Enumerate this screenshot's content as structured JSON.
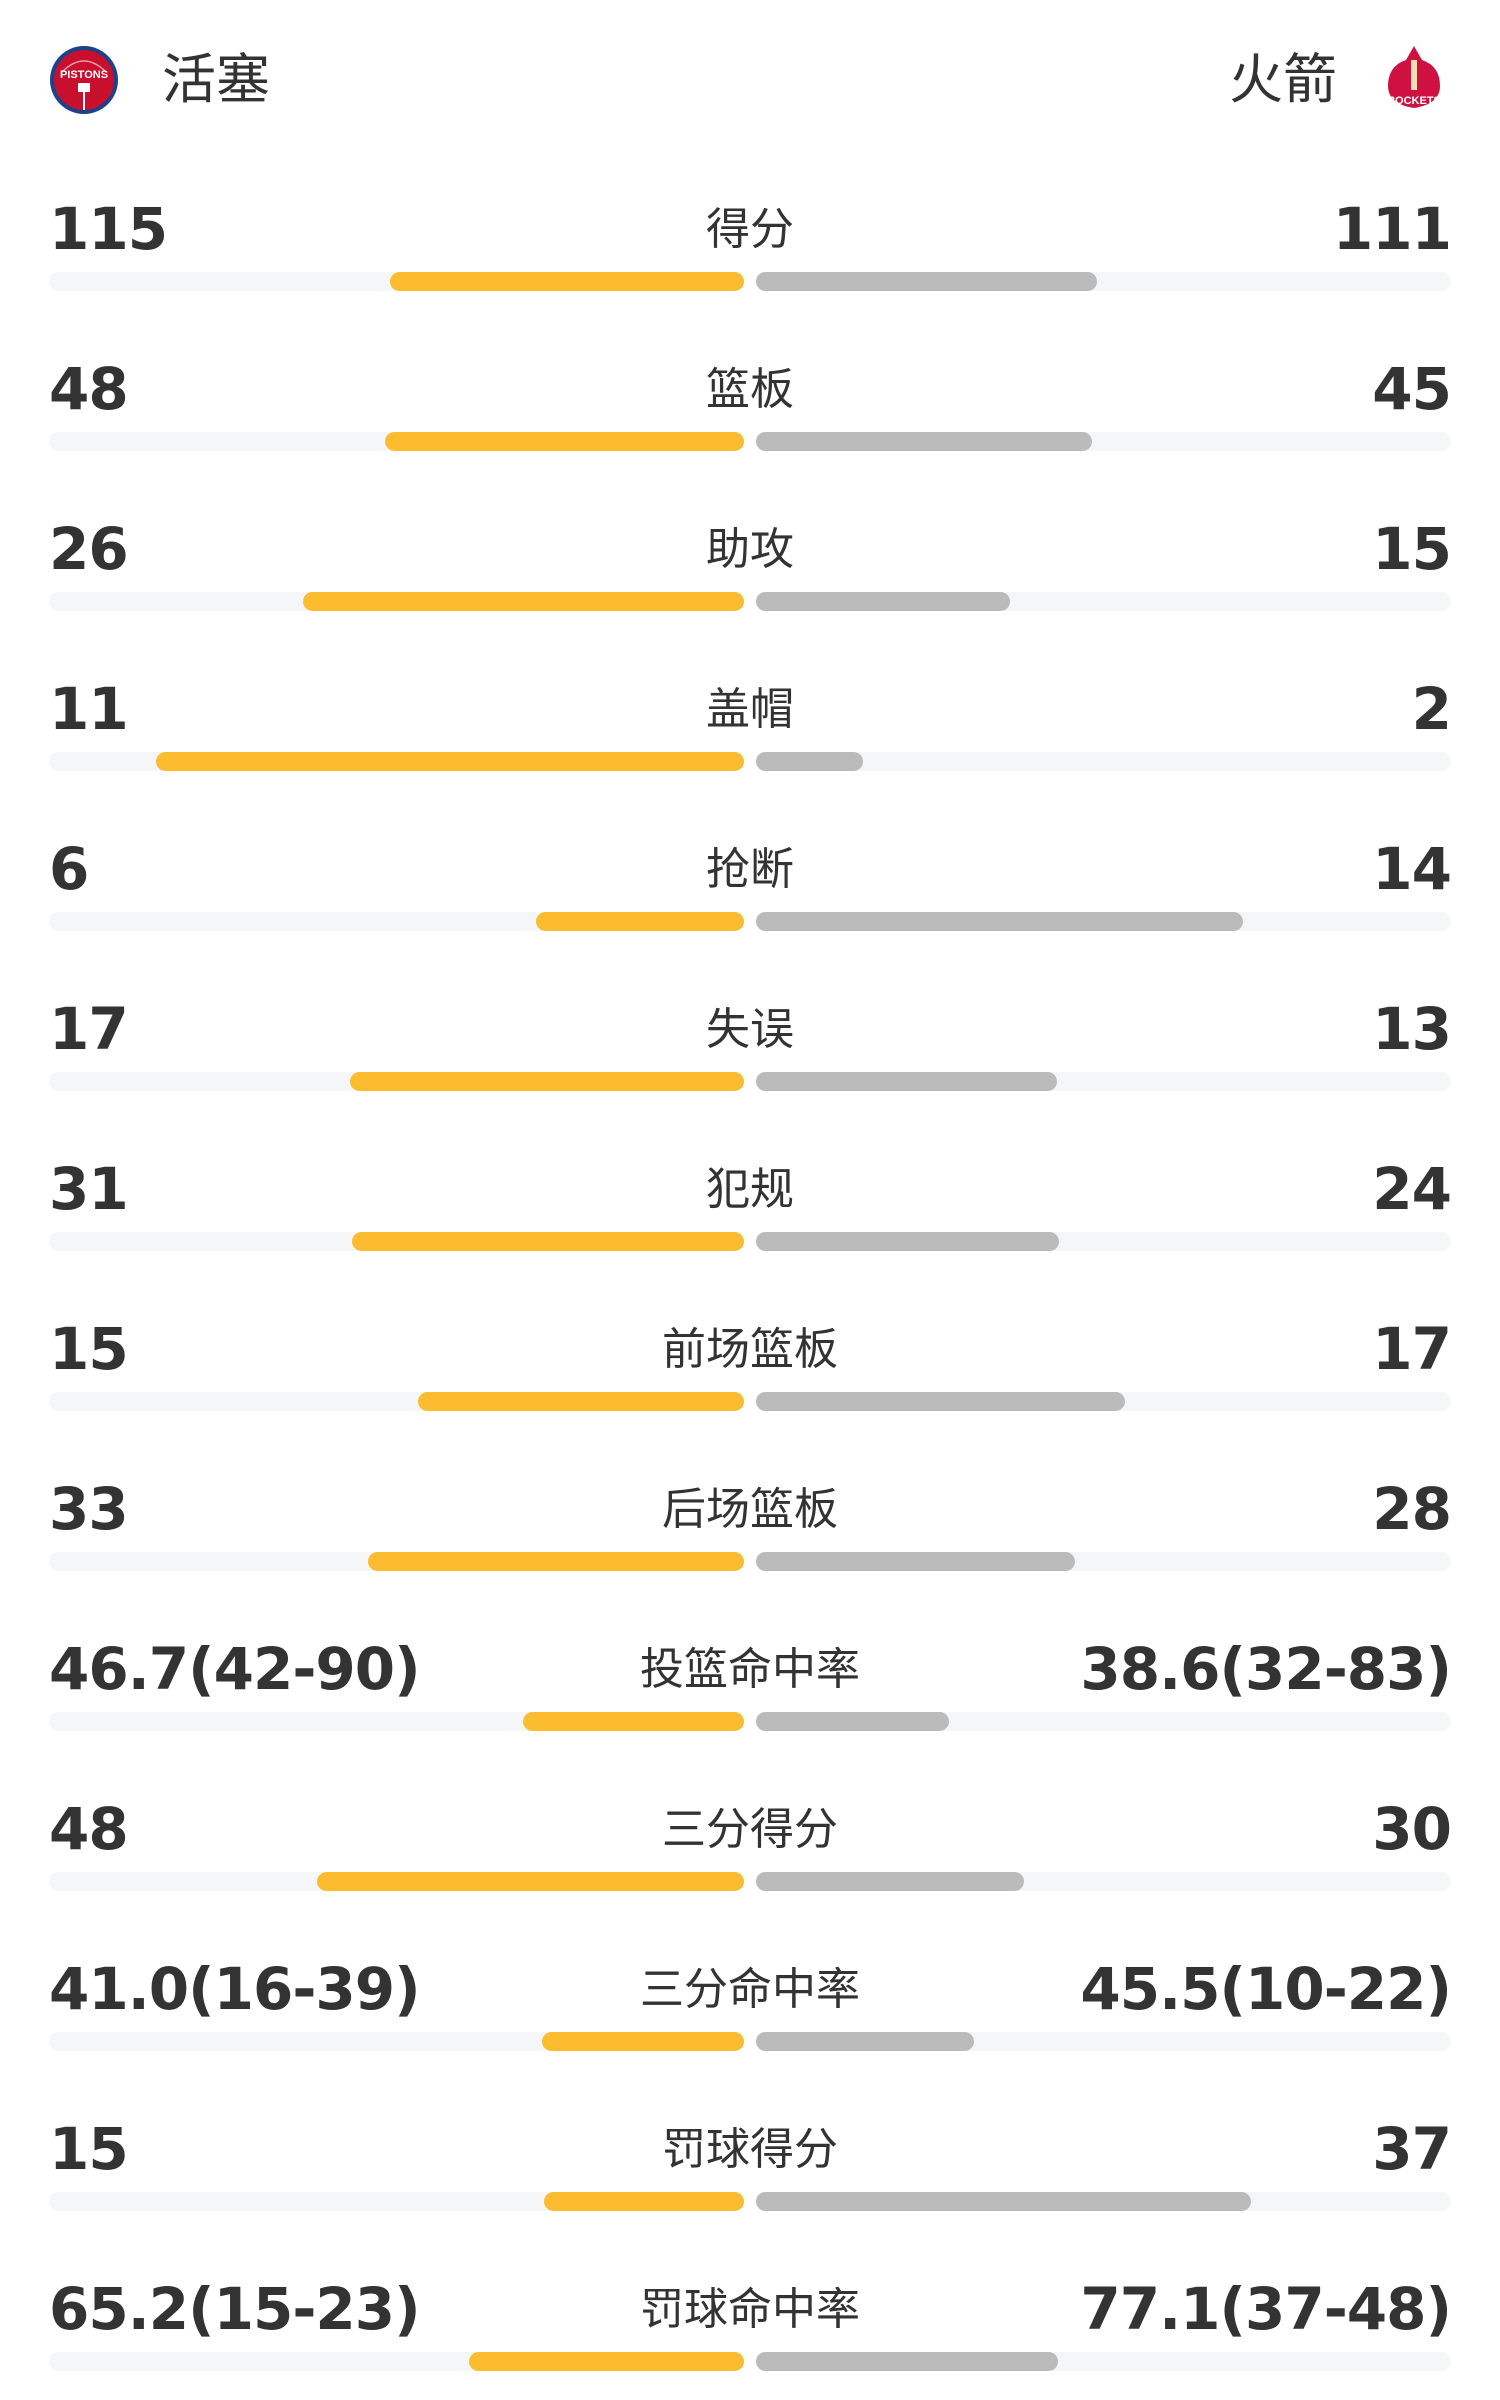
{
  "header": {
    "home": {
      "name": "活塞",
      "logo_text": "PISTONS",
      "logo_icon": "pistons-logo"
    },
    "away": {
      "name": "火箭",
      "logo_text": "ROCKETS",
      "logo_icon": "rockets-logo"
    }
  },
  "colors": {
    "home_bar": "#FBBD2F",
    "away_bar": "#BBBBBB",
    "track": "#F5F6F8",
    "text": "#333333"
  },
  "stats": [
    {
      "label": "得分",
      "home": "115",
      "away": "111",
      "home_fill": 0.509,
      "away_fill": 0.491
    },
    {
      "label": "篮板",
      "home": "48",
      "away": "45",
      "home_fill": 0.516,
      "away_fill": 0.484
    },
    {
      "label": "助攻",
      "home": "26",
      "away": "15",
      "home_fill": 0.634,
      "away_fill": 0.366
    },
    {
      "label": "盖帽",
      "home": "11",
      "away": "2",
      "home_fill": 0.846,
      "away_fill": 0.154
    },
    {
      "label": "抢断",
      "home": "6",
      "away": "14",
      "home_fill": 0.3,
      "away_fill": 0.7
    },
    {
      "label": "失误",
      "home": "17",
      "away": "13",
      "home_fill": 0.567,
      "away_fill": 0.433
    },
    {
      "label": "犯规",
      "home": "31",
      "away": "24",
      "home_fill": 0.564,
      "away_fill": 0.436
    },
    {
      "label": "前场篮板",
      "home": "15",
      "away": "17",
      "home_fill": 0.469,
      "away_fill": 0.531
    },
    {
      "label": "后场篮板",
      "home": "33",
      "away": "28",
      "home_fill": 0.541,
      "away_fill": 0.459
    },
    {
      "label": "投篮命中率",
      "home": "46.7(42-90)",
      "away": "38.6(32-83)",
      "home_fill": 0.318,
      "away_fill": 0.278
    },
    {
      "label": "三分得分",
      "home": "48",
      "away": "30",
      "home_fill": 0.615,
      "away_fill": 0.385
    },
    {
      "label": "三分命中率",
      "home": "41.0(16-39)",
      "away": "45.5(10-22)",
      "home_fill": 0.291,
      "away_fill": 0.313
    },
    {
      "label": "罚球得分",
      "home": "15",
      "away": "37",
      "home_fill": 0.288,
      "away_fill": 0.712
    },
    {
      "label": "罚球命中率",
      "home": "65.2(15-23)",
      "away": "77.1(37-48)",
      "home_fill": 0.395,
      "away_fill": 0.435
    }
  ]
}
